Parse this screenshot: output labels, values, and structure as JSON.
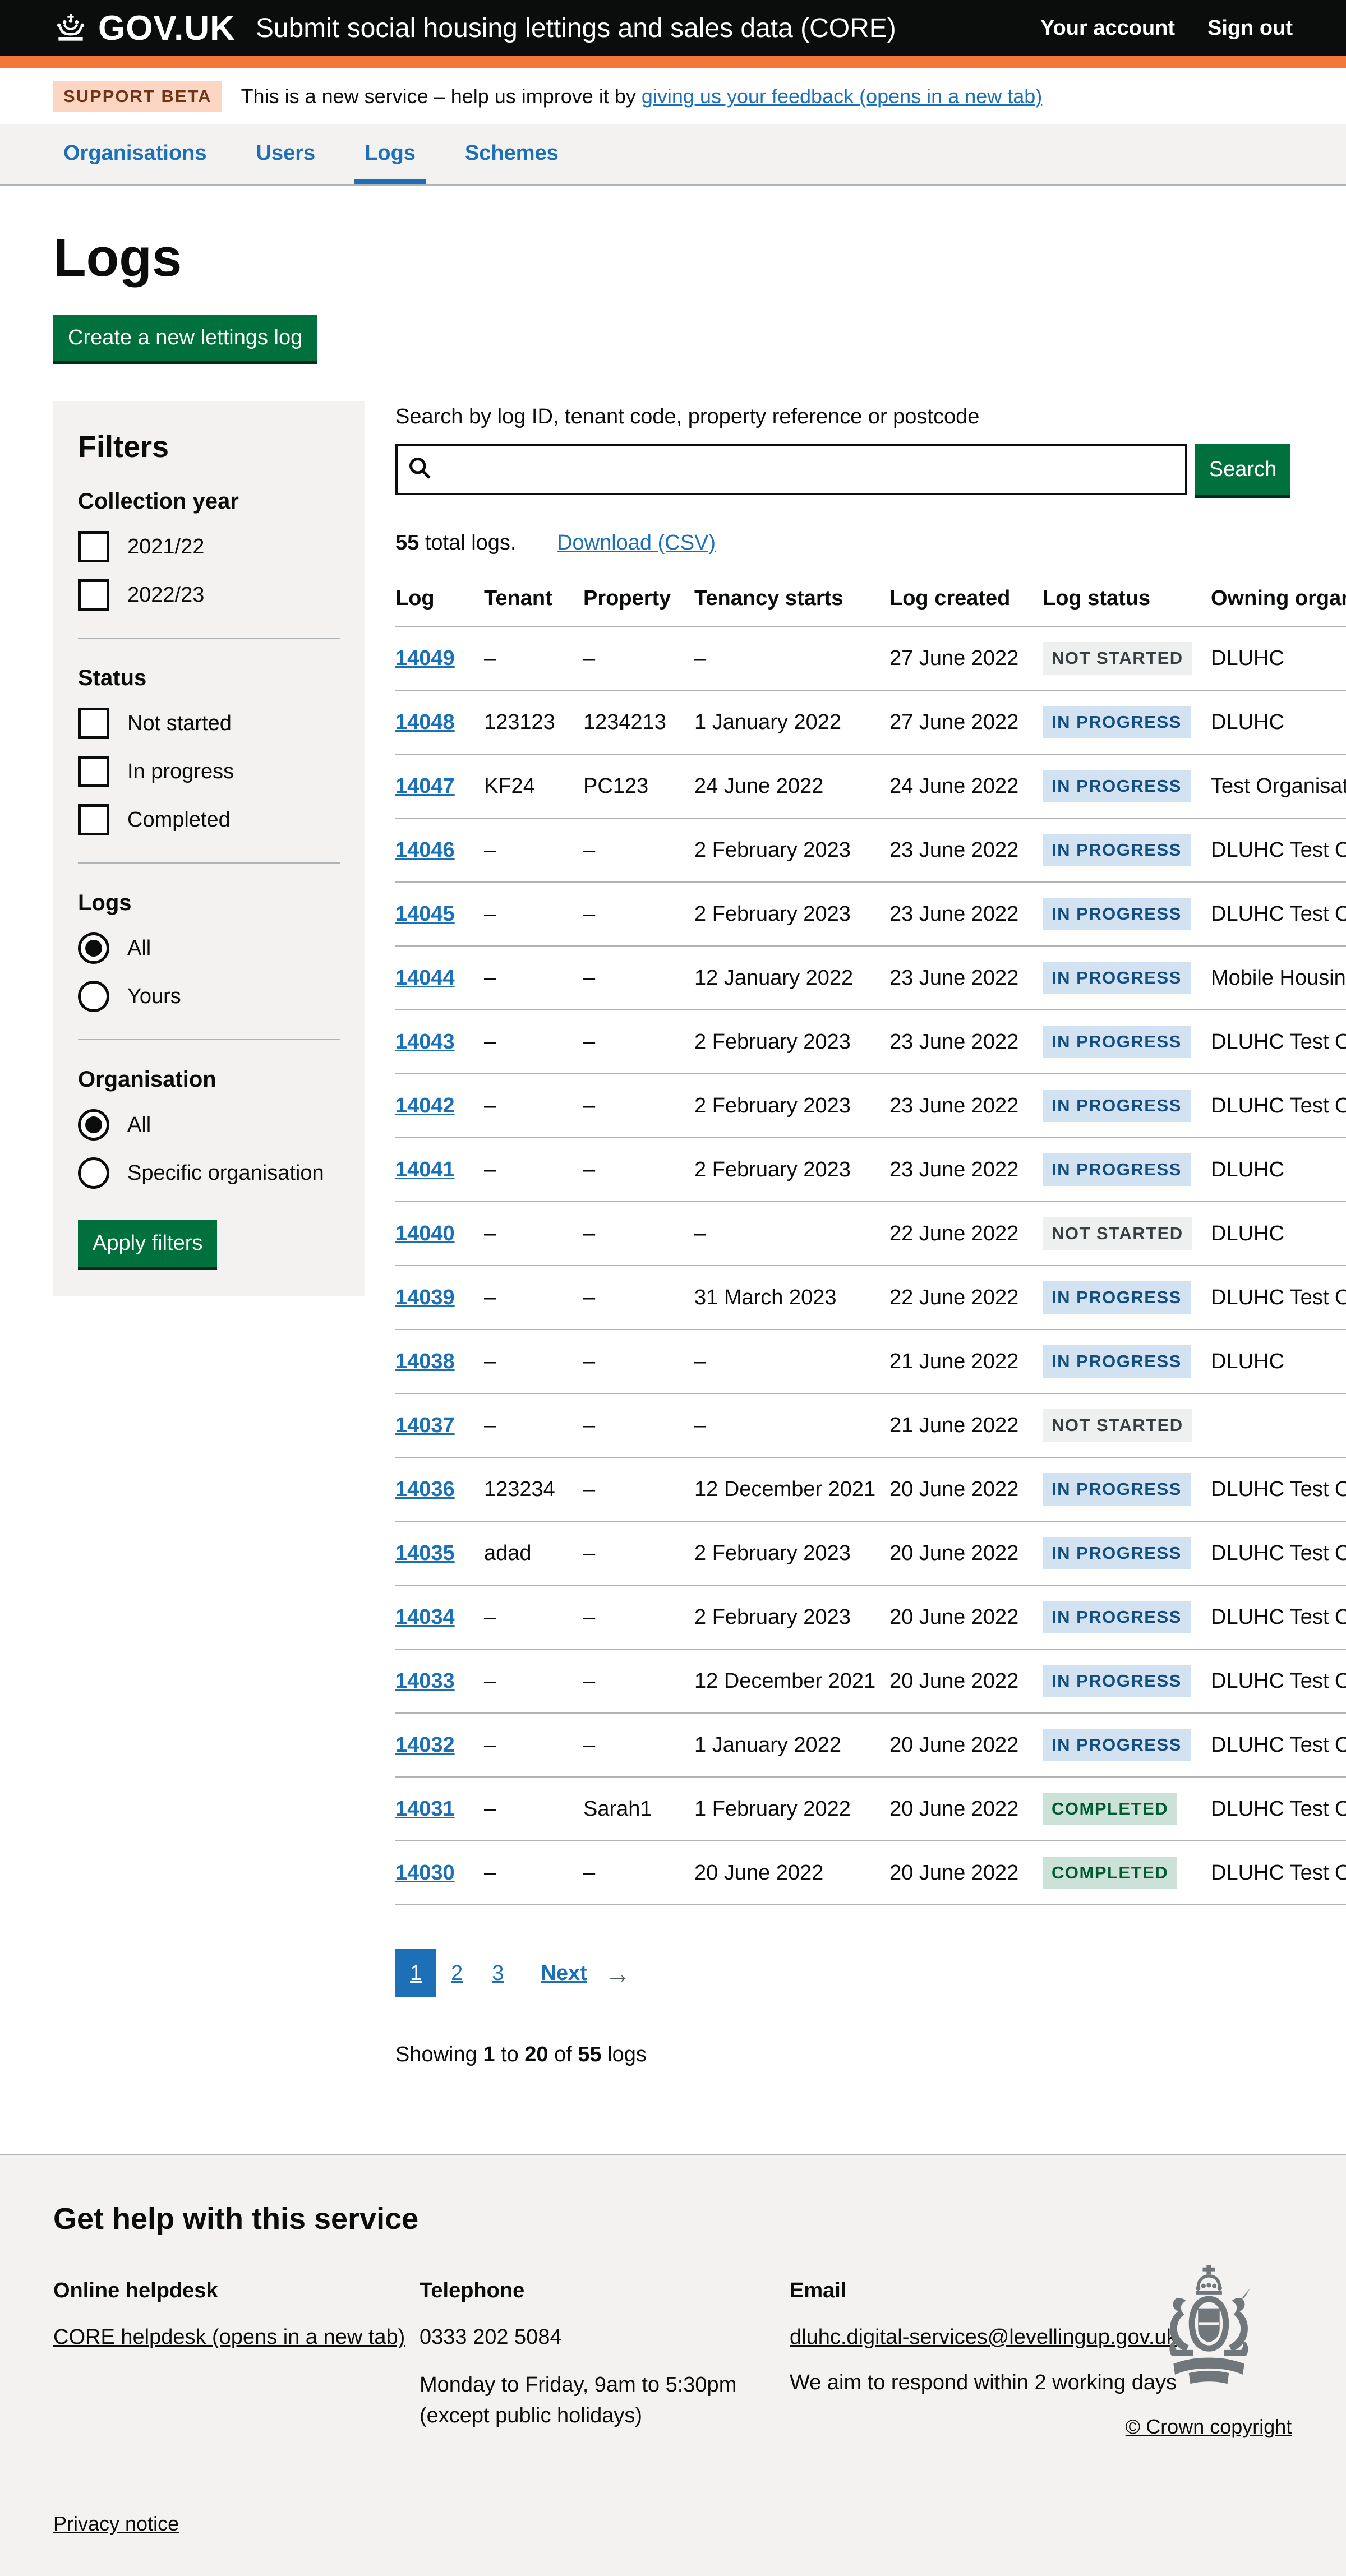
{
  "header": {
    "logo_text": "GOV.UK",
    "service_name": "Submit social housing lettings and sales data (CORE)",
    "account_link": "Your account",
    "signout_link": "Sign out"
  },
  "phase": {
    "tag": "SUPPORT BETA",
    "text": "This is a new service – help us improve it by ",
    "link_text": "giving us your feedback (opens in a new tab)"
  },
  "nav": {
    "items": [
      {
        "label": "Organisations",
        "current": false
      },
      {
        "label": "Users",
        "current": false
      },
      {
        "label": "Logs",
        "current": true
      },
      {
        "label": "Schemes",
        "current": false
      }
    ]
  },
  "page": {
    "title": "Logs",
    "create_button": "Create a new lettings log"
  },
  "filters": {
    "title": "Filters",
    "apply_button": "Apply filters",
    "groups": [
      {
        "label": "Collection year",
        "type": "checkbox",
        "options": [
          {
            "label": "2021/22",
            "checked": false
          },
          {
            "label": "2022/23",
            "checked": false
          }
        ]
      },
      {
        "label": "Status",
        "type": "checkbox",
        "options": [
          {
            "label": "Not started",
            "checked": false
          },
          {
            "label": "In progress",
            "checked": false
          },
          {
            "label": "Completed",
            "checked": false
          }
        ]
      },
      {
        "label": "Logs",
        "type": "radio",
        "options": [
          {
            "label": "All",
            "checked": true
          },
          {
            "label": "Yours",
            "checked": false
          }
        ]
      },
      {
        "label": "Organisation",
        "type": "radio",
        "options": [
          {
            "label": "All",
            "checked": true
          },
          {
            "label": "Specific organisation",
            "checked": false
          }
        ]
      }
    ]
  },
  "search": {
    "label": "Search by log ID, tenant code, property reference or postcode",
    "value": "",
    "button_label": "Search"
  },
  "results": {
    "count": "55",
    "suffix": " total logs.",
    "download_label": "Download (CSV)"
  },
  "table": {
    "columns": [
      "Log",
      "Tenant",
      "Property",
      "Tenancy starts",
      "Log created",
      "Log status",
      "Owning organisation"
    ],
    "rows": [
      {
        "log": "14049",
        "tenant": "–",
        "property": "–",
        "tenancy_starts": "–",
        "log_created": "27 June 2022",
        "status": "NOT STARTED",
        "tone": "grey",
        "owning": "DLUHC"
      },
      {
        "log": "14048",
        "tenant": "123123",
        "property": "1234213",
        "tenancy_starts": "1 January 2022",
        "log_created": "27 June 2022",
        "status": "IN PROGRESS",
        "tone": "blue",
        "owning": "DLUHC"
      },
      {
        "log": "14047",
        "tenant": "KF24",
        "property": "PC123",
        "tenancy_starts": "24 June 2022",
        "log_created": "24 June 2022",
        "status": "IN PROGRESS",
        "tone": "blue",
        "owning": "Test Organisation"
      },
      {
        "log": "14046",
        "tenant": "–",
        "property": "–",
        "tenancy_starts": "2 February 2023",
        "log_created": "23 June 2022",
        "status": "IN PROGRESS",
        "tone": "blue",
        "owning": "DLUHC Test Org"
      },
      {
        "log": "14045",
        "tenant": "–",
        "property": "–",
        "tenancy_starts": "2 February 2023",
        "log_created": "23 June 2022",
        "status": "IN PROGRESS",
        "tone": "blue",
        "owning": "DLUHC Test Org"
      },
      {
        "log": "14044",
        "tenant": "–",
        "property": "–",
        "tenancy_starts": "12 January 2022",
        "log_created": "23 June 2022",
        "status": "IN PROGRESS",
        "tone": "blue",
        "owning": "Mobile Housing"
      },
      {
        "log": "14043",
        "tenant": "–",
        "property": "–",
        "tenancy_starts": "2 February 2023",
        "log_created": "23 June 2022",
        "status": "IN PROGRESS",
        "tone": "blue",
        "owning": "DLUHC Test Org"
      },
      {
        "log": "14042",
        "tenant": "–",
        "property": "–",
        "tenancy_starts": "2 February 2023",
        "log_created": "23 June 2022",
        "status": "IN PROGRESS",
        "tone": "blue",
        "owning": "DLUHC Test Org"
      },
      {
        "log": "14041",
        "tenant": "–",
        "property": "–",
        "tenancy_starts": "2 February 2023",
        "log_created": "23 June 2022",
        "status": "IN PROGRESS",
        "tone": "blue",
        "owning": "DLUHC"
      },
      {
        "log": "14040",
        "tenant": "–",
        "property": "–",
        "tenancy_starts": "–",
        "log_created": "22 June 2022",
        "status": "NOT STARTED",
        "tone": "grey",
        "owning": "DLUHC"
      },
      {
        "log": "14039",
        "tenant": "–",
        "property": "–",
        "tenancy_starts": "31 March 2023",
        "log_created": "22 June 2022",
        "status": "IN PROGRESS",
        "tone": "blue",
        "owning": "DLUHC Test Org"
      },
      {
        "log": "14038",
        "tenant": "–",
        "property": "–",
        "tenancy_starts": "–",
        "log_created": "21 June 2022",
        "status": "IN PROGRESS",
        "tone": "blue",
        "owning": "DLUHC"
      },
      {
        "log": "14037",
        "tenant": "–",
        "property": "–",
        "tenancy_starts": "–",
        "log_created": "21 June 2022",
        "status": "NOT STARTED",
        "tone": "grey",
        "owning": ""
      },
      {
        "log": "14036",
        "tenant": "123234",
        "property": "–",
        "tenancy_starts": "12 December 2021",
        "log_created": "20 June 2022",
        "status": "IN PROGRESS",
        "tone": "blue",
        "owning": "DLUHC Test Org"
      },
      {
        "log": "14035",
        "tenant": "adad",
        "property": "–",
        "tenancy_starts": "2 February 2023",
        "log_created": "20 June 2022",
        "status": "IN PROGRESS",
        "tone": "blue",
        "owning": "DLUHC Test Org"
      },
      {
        "log": "14034",
        "tenant": "–",
        "property": "–",
        "tenancy_starts": "2 February 2023",
        "log_created": "20 June 2022",
        "status": "IN PROGRESS",
        "tone": "blue",
        "owning": "DLUHC Test Org"
      },
      {
        "log": "14033",
        "tenant": "–",
        "property": "–",
        "tenancy_starts": "12 December 2021",
        "log_created": "20 June 2022",
        "status": "IN PROGRESS",
        "tone": "blue",
        "owning": "DLUHC Test Org"
      },
      {
        "log": "14032",
        "tenant": "–",
        "property": "–",
        "tenancy_starts": "1 January 2022",
        "log_created": "20 June 2022",
        "status": "IN PROGRESS",
        "tone": "blue",
        "owning": "DLUHC Test Org"
      },
      {
        "log": "14031",
        "tenant": "–",
        "property": "Sarah1",
        "tenancy_starts": "1 February 2022",
        "log_created": "20 June 2022",
        "status": "COMPLETED",
        "tone": "green",
        "owning": "DLUHC Test Org"
      },
      {
        "log": "14030",
        "tenant": "–",
        "property": "–",
        "tenancy_starts": "20 June 2022",
        "log_created": "20 June 2022",
        "status": "COMPLETED",
        "tone": "green",
        "owning": "DLUHC Test Org"
      }
    ]
  },
  "pagination": {
    "pages": [
      "1",
      "2",
      "3"
    ],
    "current": "1",
    "next_label": "Next",
    "arrow": "→"
  },
  "showing": {
    "s1": "Showing ",
    "b1": "1",
    "s2": " to ",
    "b2": "20",
    "s3": " of ",
    "b3": "55",
    "s4": " logs"
  },
  "footer": {
    "heading": "Get help with this service",
    "helpdesk": {
      "title": "Online helpdesk",
      "link": "CORE helpdesk (opens in a new tab)"
    },
    "telephone": {
      "title": "Telephone",
      "number": "0333 202 5084",
      "line1": "Monday to Friday, 9am to 5:30pm",
      "line2": "(except public holidays)"
    },
    "email": {
      "title": "Email",
      "link": "dluhc.digital-services@levellingup.gov.uk",
      "note": "We aim to respond within 2 working days"
    },
    "copyright": "© Crown copyright",
    "privacy": "Privacy notice"
  },
  "colors": {
    "accent_blue": "#1d70b8",
    "brand_black": "#0b0c0c",
    "header_border_orange": "#f47738",
    "button_green": "#00703c",
    "panel_grey": "#f3f2f1",
    "beta_tag_bg": "#fcd6c3",
    "beta_tag_text": "#6e3619",
    "tag_grey_bg": "#eeefef",
    "tag_grey_text": "#383f43",
    "tag_blue_bg": "#d2e2f1",
    "tag_blue_text": "#144e81",
    "tag_green_bg": "#cce2d8",
    "tag_green_text": "#005a30"
  }
}
